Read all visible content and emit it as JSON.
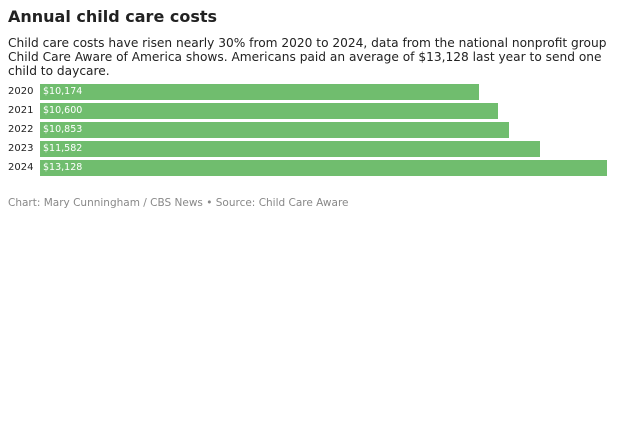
{
  "header": {
    "title": "Annual child care costs",
    "subtitle": "Child care costs have risen nearly 30% from 2020 to 2024, data from the national nonprofit group Child Care Aware of America shows.  Americans paid an average of $13,128 last year to send one child to daycare."
  },
  "footer": {
    "credit": "Chart: Mary Cunningham / CBS News • Source: Child Care Aware"
  },
  "colors": {
    "bar": "#70bd6e",
    "bar_label": "#ffffff",
    "credit": "#888888"
  },
  "chart_data": {
    "type": "bar",
    "orientation": "horizontal",
    "title": "Annual child care costs",
    "categories": [
      "2020",
      "2021",
      "2022",
      "2023",
      "2024"
    ],
    "values": [
      10174,
      10600,
      10853,
      11582,
      13128
    ],
    "value_labels": [
      "$10,174",
      "$10,600",
      "$10,853",
      "$11,582",
      "$13,128"
    ],
    "xlim": [
      0,
      13128
    ],
    "xlabel": "",
    "ylabel": "",
    "grid": false,
    "legend": "none"
  }
}
